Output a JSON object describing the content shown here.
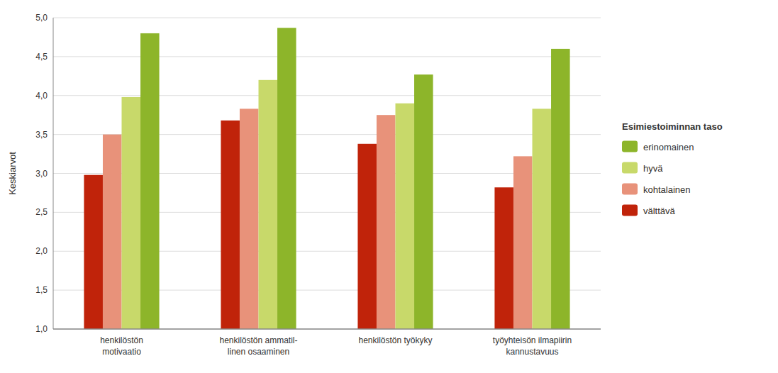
{
  "chart_data": {
    "type": "bar",
    "categories": [
      "henkilöstön\nmotivaatio",
      "henkilöstön ammatil-\nlinen osaaminen",
      "henkilöstön työkyky",
      "työyhteisön ilmapiirin\nkannustavuus"
    ],
    "series": [
      {
        "name": "välttävä",
        "color": "#c0230a",
        "values": [
          2.98,
          3.68,
          3.38,
          2.82
        ]
      },
      {
        "name": "kohtalainen",
        "color": "#e8927a",
        "values": [
          3.5,
          3.83,
          3.75,
          3.22
        ]
      },
      {
        "name": "hyvä",
        "color": "#c8d96a",
        "values": [
          3.98,
          4.2,
          3.9,
          3.83
        ]
      },
      {
        "name": "erinomainen",
        "color": "#8db52a",
        "values": [
          4.8,
          4.87,
          4.27,
          4.6
        ]
      }
    ],
    "y_label": "Keskiarvot",
    "legend_title": "Esimiestoiminnan taso",
    "ylim": [
      1.0,
      5.0
    ],
    "yticks": [
      {
        "value": 1.0,
        "label": "1,0"
      },
      {
        "value": 1.5,
        "label": "1,5"
      },
      {
        "value": 2.0,
        "label": "2,0"
      },
      {
        "value": 2.5,
        "label": "2,5"
      },
      {
        "value": 3.0,
        "label": "3,0"
      },
      {
        "value": 3.5,
        "label": "3,5"
      },
      {
        "value": 4.0,
        "label": "4,0"
      },
      {
        "value": 4.5,
        "label": "4,5"
      },
      {
        "value": 5.0,
        "label": "5,0"
      }
    ],
    "grid": true,
    "legend": "right"
  }
}
